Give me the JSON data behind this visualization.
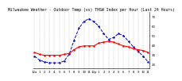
{
  "title": "Milwaukee Weather - Outdoor Temp (vs) THSW Index per Hour (Last 24 Hours)",
  "background_color": "#ffffff",
  "plot_bg_color": "#ffffff",
  "grid_color": "#888888",
  "hours": [
    0,
    1,
    2,
    3,
    4,
    5,
    6,
    7,
    8,
    9,
    10,
    11,
    12,
    13,
    14,
    15,
    16,
    17,
    18,
    19,
    20,
    21,
    22,
    23
  ],
  "temp": [
    32,
    30,
    29,
    29,
    29,
    29,
    30,
    31,
    35,
    38,
    39,
    39,
    39,
    42,
    43,
    44,
    43,
    41,
    39,
    38,
    36,
    35,
    34,
    32
  ],
  "thsw": [
    28,
    24,
    22,
    21,
    21,
    21,
    23,
    30,
    45,
    58,
    65,
    68,
    65,
    60,
    52,
    46,
    48,
    52,
    50,
    44,
    38,
    33,
    28,
    22
  ],
  "temp_color": "#ff0000",
  "thsw_color": "#0000cc",
  "ylim_min": 15,
  "ylim_max": 75,
  "ytick_values": [
    20,
    30,
    40,
    50,
    60,
    70
  ],
  "ytick_labels": [
    "20",
    "30",
    "40",
    "50",
    "60",
    "70"
  ],
  "x_tick_labels": [
    "12a",
    "1",
    "2",
    "3",
    "4",
    "5",
    "6",
    "7",
    "8",
    "9",
    "10",
    "11",
    "12p",
    "1",
    "2",
    "3",
    "4",
    "5",
    "6",
    "7",
    "8",
    "9",
    "10",
    "11"
  ],
  "title_fontsize": 3.5,
  "tick_fontsize": 2.8,
  "linewidth_temp": 0.8,
  "linewidth_thsw": 0.7,
  "marker_size": 1.5
}
